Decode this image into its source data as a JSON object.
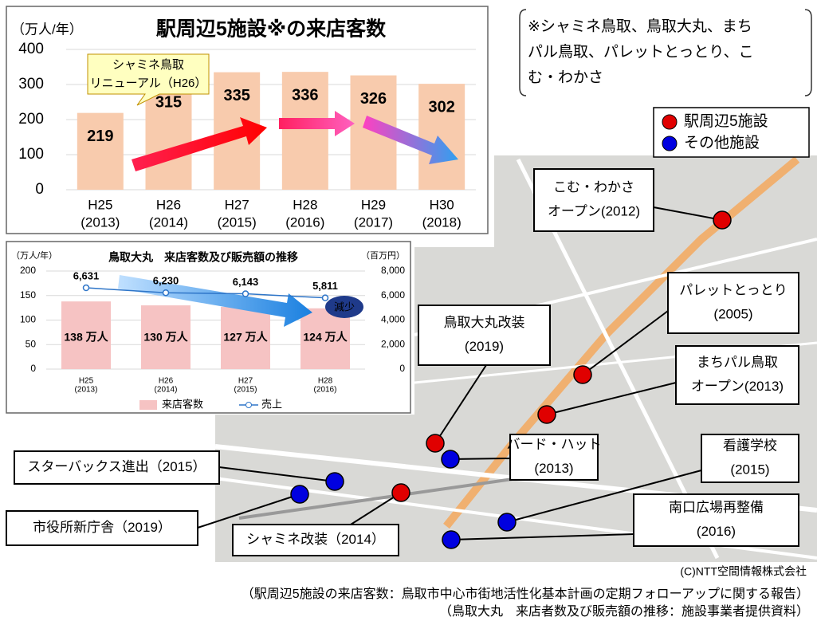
{
  "chart_data": [
    {
      "type": "bar",
      "title": "駅周辺5施設※の来店客数",
      "y_label": "（万人/年）",
      "categories": [
        [
          "H25",
          "(2013)"
        ],
        [
          "H26",
          "(2014)"
        ],
        [
          "H27",
          "(2015)"
        ],
        [
          "H28",
          "(2016)"
        ],
        [
          "H29",
          "(2017)"
        ],
        [
          "H30",
          "(2018)"
        ]
      ],
      "values": [
        219,
        315,
        335,
        336,
        326,
        302
      ],
      "color": "#f8cbad",
      "ylim": [
        0,
        400
      ],
      "yticks": [
        0,
        100,
        200,
        300,
        400
      ],
      "grid": true,
      "annotation": [
        "シャミネ鳥取",
        "リニューアル（H26）"
      ]
    },
    {
      "type": "combo",
      "title": "鳥取大丸　来店客数及び販売額の推移",
      "y_label": "（万人/年）",
      "y2_label": "（百万円）",
      "categories": [
        [
          "H25",
          "(2013)"
        ],
        [
          "H26",
          "(2014)"
        ],
        [
          "H27",
          "(2015)"
        ],
        [
          "H28",
          "(2016)"
        ]
      ],
      "series": [
        {
          "name": "来店客数",
          "kind": "bar",
          "color": "#f6c3c3",
          "values": [
            138,
            130,
            127,
            124
          ],
          "value_labels": [
            "138 万人",
            "130 万人",
            "127 万人",
            "124 万人"
          ]
        },
        {
          "name": "売上",
          "kind": "line",
          "axis": "y2",
          "color": "#2e75c8",
          "values": [
            6631,
            6230,
            6143,
            5811
          ],
          "value_labels": [
            "6,631",
            "6,230",
            "6,143",
            "5,811"
          ]
        }
      ],
      "ylim": [
        0,
        200
      ],
      "yticks": [
        0,
        50,
        100,
        150,
        200
      ],
      "y2lim": [
        0,
        8000
      ],
      "y2ticks": [
        0,
        {
          "value": 2000,
          "label": "2,000"
        },
        {
          "value": 4000,
          "label": "4,000"
        },
        {
          "value": 6000,
          "label": "6,000"
        },
        {
          "value": 8000,
          "label": "8,000"
        }
      ],
      "grid": true,
      "annotation": "減少"
    }
  ],
  "note": [
    "※シャミネ鳥取、鳥取大丸、まち",
    "パル鳥取、パレットとっとり、こ",
    "む・わかさ"
  ],
  "legend": [
    {
      "label": "駅周辺5施設",
      "color": "#e00000"
    },
    {
      "label": "その他施設",
      "color": "#0000e0"
    }
  ],
  "map": {
    "points": [
      {
        "label": [
          "こむ・わかさ",
          "オープン(2012)"
        ],
        "color": "#e00000"
      },
      {
        "label": [
          "パレットとっとり",
          "(2005)"
        ],
        "color": "#e00000"
      },
      {
        "label": [
          "鳥取大丸改装",
          "(2019)"
        ],
        "color": "#e00000"
      },
      {
        "label": [
          "まちパル鳥取",
          "オープン(2013)"
        ],
        "color": "#e00000"
      },
      {
        "label": [
          "バード・ハット",
          "(2013)"
        ],
        "color": "#0000e0"
      },
      {
        "label": [
          "スターバックス進出（2015）"
        ],
        "color": "#0000e0"
      },
      {
        "label": [
          "市役所新庁舎（2019）"
        ],
        "color": "#0000e0"
      },
      {
        "label": [
          "シャミネ改装（2014）"
        ],
        "color": "#e00000"
      },
      {
        "label": [
          "看護学校",
          "(2015)"
        ],
        "color": "#0000e0"
      },
      {
        "label": [
          "南口広場再整備",
          "(2016)"
        ],
        "color": "#0000e0"
      }
    ],
    "copyright": "(C)NTT空間情報株式会社"
  },
  "sources": [
    "（駅周辺5施設の来店客数：鳥取市中心市街地活性化基本計画の定期フォローアップに関する報告）",
    "（鳥取大丸　来店者数及び販売額の推移：施設事業者提供資料）"
  ]
}
